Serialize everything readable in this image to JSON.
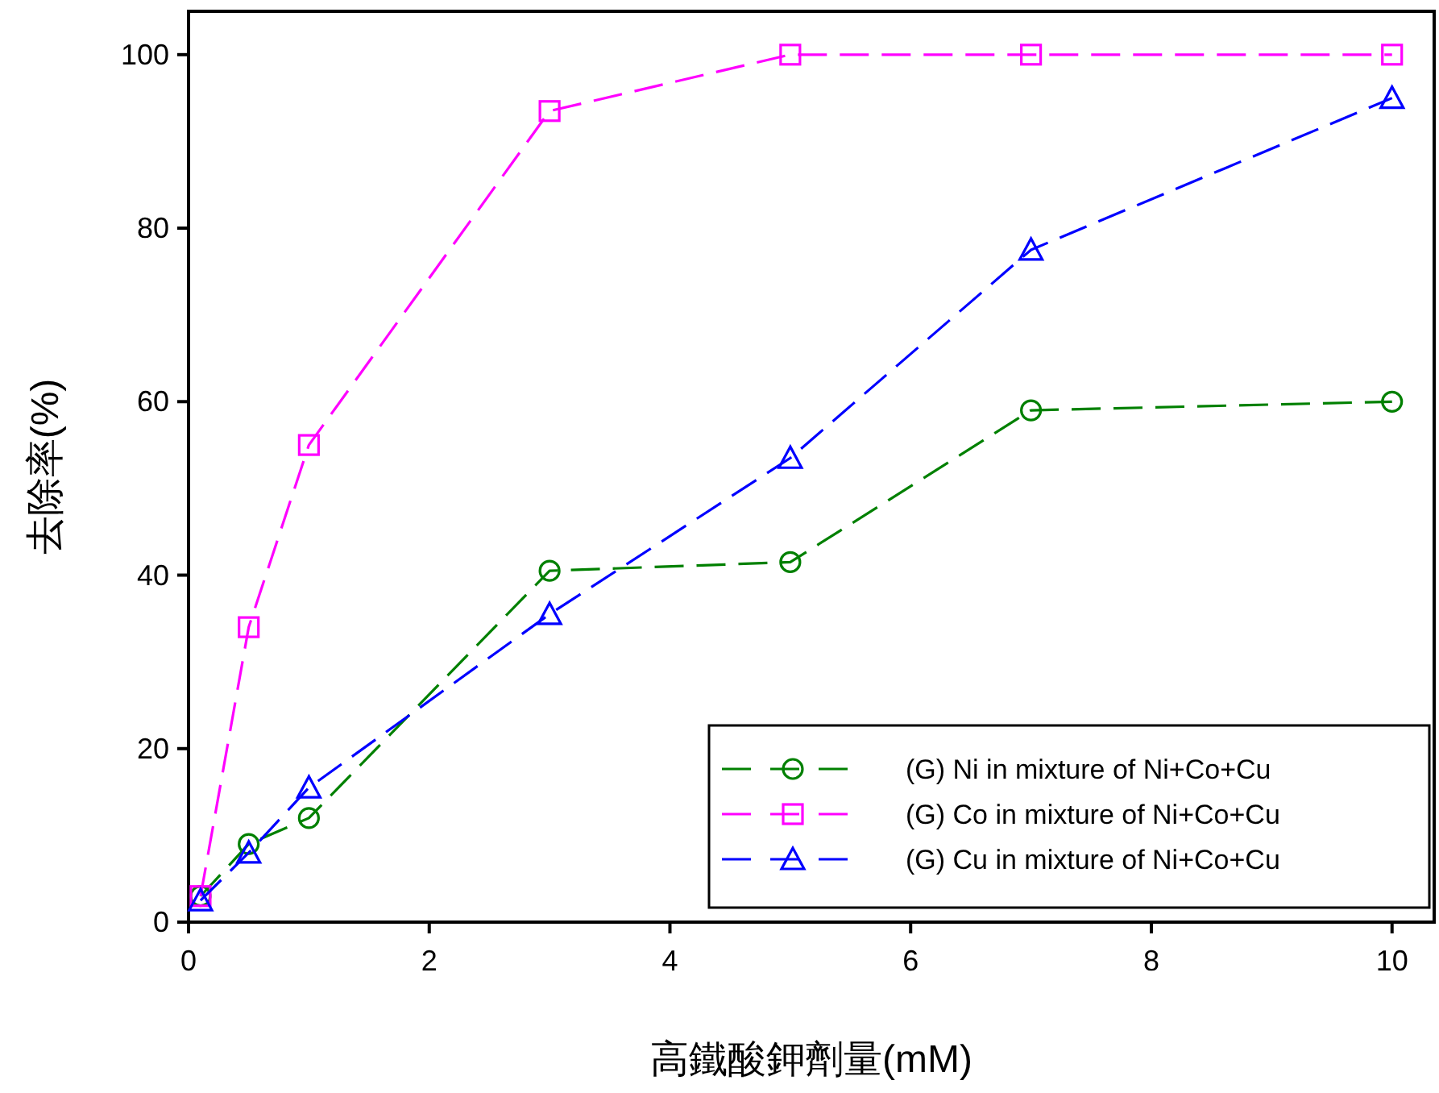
{
  "chart_data": {
    "type": "line",
    "xlabel": "高鐵酸鉀劑量(mM)",
    "ylabel": "去除率(%)",
    "x": [
      0.1,
      0.5,
      1,
      3,
      5,
      7,
      10
    ],
    "xlim": [
      0,
      10.35
    ],
    "ylim": [
      0,
      105
    ],
    "xticks": [
      0,
      2,
      4,
      6,
      8,
      10
    ],
    "yticks": [
      0,
      20,
      40,
      60,
      80,
      100
    ],
    "grid": false,
    "legend": "bottom right",
    "line_style": "dashed",
    "series": [
      {
        "name": "(G) Ni in mixture of Ni+Co+Cu",
        "color": "#008000",
        "marker": "circle",
        "values": [
          3,
          9,
          12,
          40.5,
          41.5,
          59,
          60
        ]
      },
      {
        "name": "(G) Co in mixture of Ni+Co+Cu",
        "color": "#ff00ff",
        "marker": "square",
        "values": [
          3,
          34,
          55,
          93.5,
          100,
          100,
          100
        ]
      },
      {
        "name": "(G) Cu in mixture of Ni+Co+Cu",
        "color": "#0000ff",
        "marker": "triangle",
        "values": [
          2.5,
          8,
          15.5,
          35.5,
          53.5,
          77.5,
          95
        ]
      }
    ]
  }
}
